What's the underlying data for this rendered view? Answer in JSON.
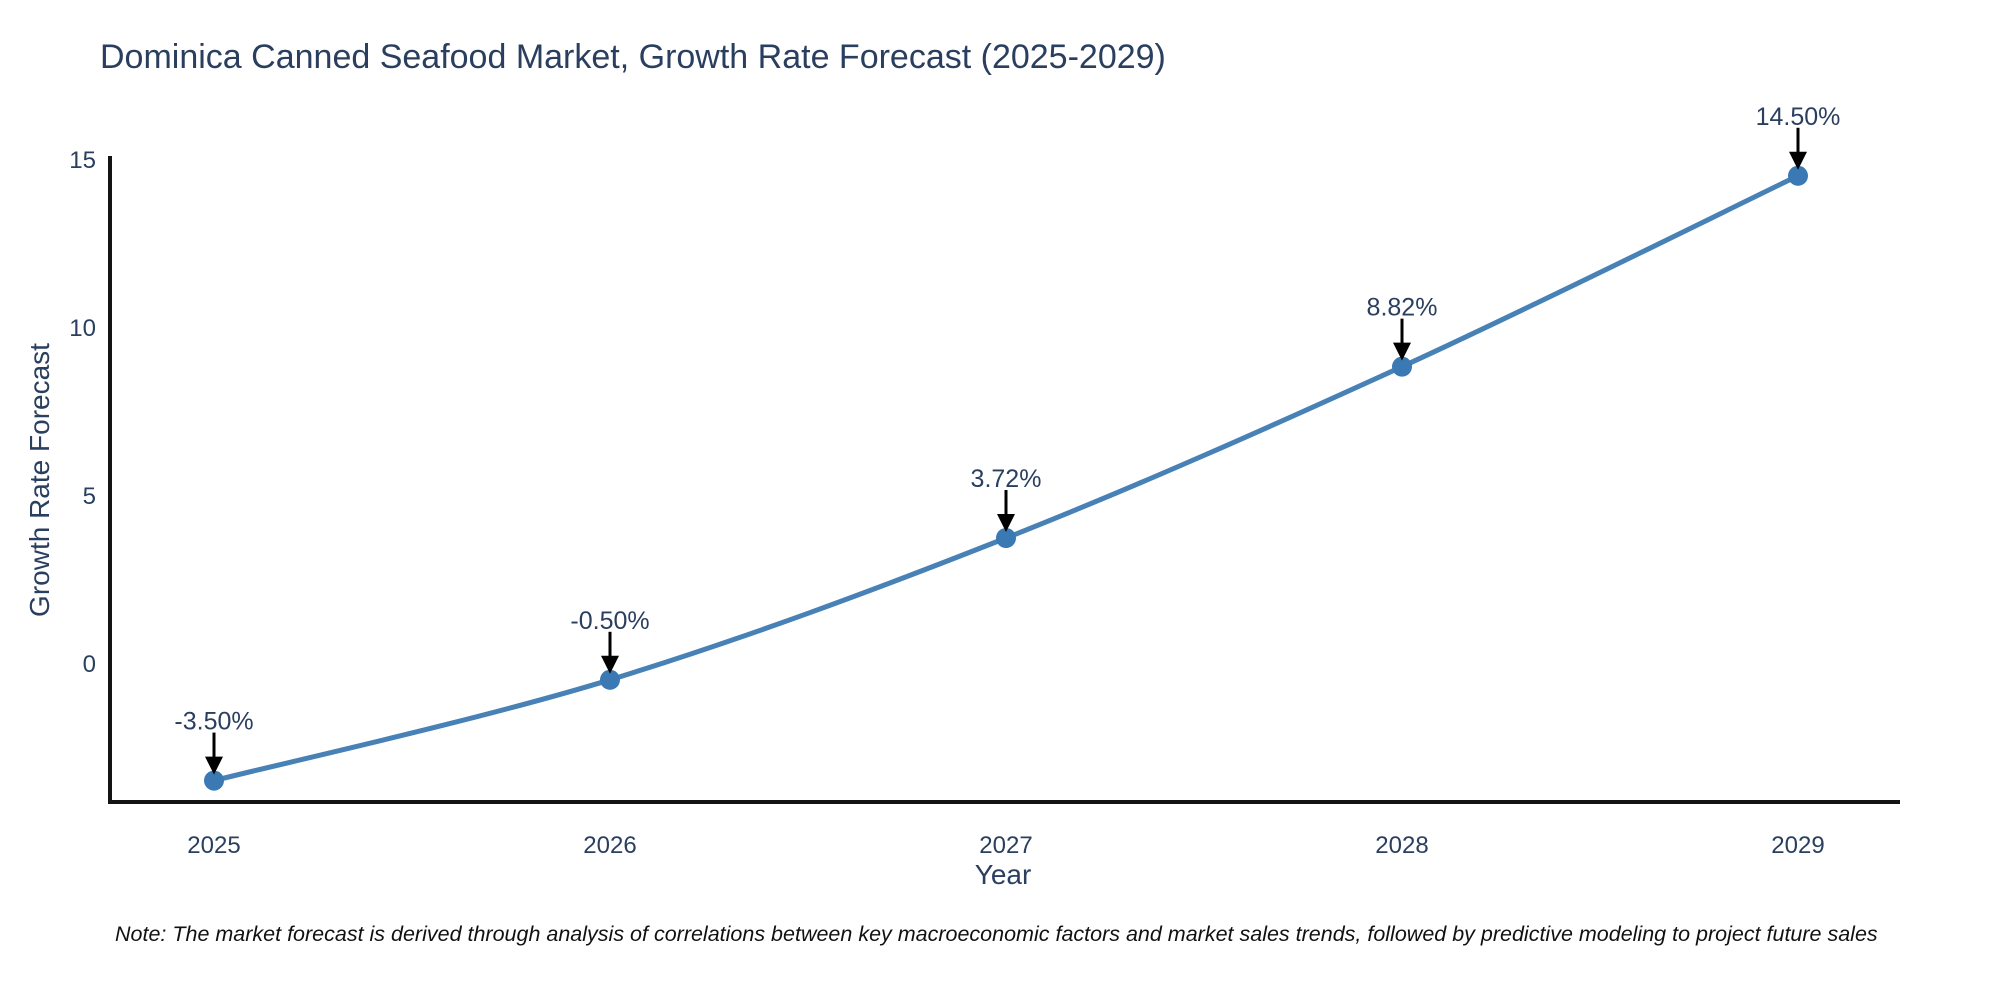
{
  "note": "Note: The market forecast is derived through analysis of correlations between key macroeconomic factors and market sales trends, followed by predictive modeling to project future sales",
  "chart_data": {
    "type": "line",
    "title": "Dominica Canned Seafood Market, Growth Rate Forecast (2025-2029)",
    "xlabel": "Year",
    "ylabel": "Growth Rate Forecast",
    "x": [
      2025,
      2026,
      2027,
      2028,
      2029
    ],
    "y": [
      -3.5,
      -0.5,
      3.72,
      8.82,
      14.5
    ],
    "point_labels": [
      "-3.50%",
      "-0.50%",
      "3.72%",
      "8.82%",
      "14.50%"
    ],
    "yticks": [
      0,
      5,
      10,
      15
    ],
    "ylim": [
      -4.2,
      15.2
    ],
    "grid": false,
    "legend": "none",
    "line_shape": "spline",
    "markers": true,
    "colors": {
      "line": "#4781b6",
      "marker": "#3a79b4",
      "axis": "#141414",
      "text": "#2a3f5f",
      "annotation": "#2a3f5f",
      "note": "#111111"
    }
  }
}
